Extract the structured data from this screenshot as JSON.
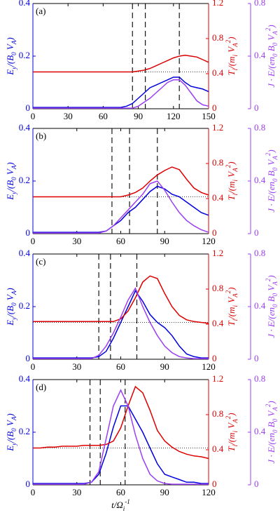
{
  "chart_data": [
    {
      "type": "line",
      "panel_label": "(a)",
      "xlim": [
        0,
        150
      ],
      "xticks": [
        0,
        30,
        60,
        90,
        120,
        150
      ],
      "ylim": [
        0,
        0.4
      ],
      "yticks": [
        0,
        0.2,
        0.4
      ],
      "y2lim": [
        0,
        1.2
      ],
      "y2ticks": [
        0,
        0.4,
        0.8,
        1.2
      ],
      "y3lim": [
        0,
        0.8
      ],
      "y3ticks": [
        0,
        0.4,
        0.8
      ],
      "ylabel": "E_{y}/(B_{0} V_{A})",
      "y2label": "T_{i}/(m_{i} V_{A}^{2})",
      "y3label": "J · E/(en_{0} B_{0} V_{A}^{2})",
      "vlines": [
        85,
        96,
        125
      ],
      "hline": 0.14,
      "x": [
        0,
        5,
        10,
        15,
        20,
        25,
        30,
        35,
        40,
        45,
        50,
        55,
        60,
        65,
        70,
        75,
        80,
        85,
        90,
        95,
        100,
        105,
        110,
        115,
        120,
        125,
        130,
        135,
        140,
        145,
        150
      ],
      "series": [
        {
          "color": "#0000dd",
          "axis": "y",
          "values": [
            0.005,
            0.005,
            0.005,
            0.005,
            0.005,
            0.005,
            0.005,
            0.005,
            0.005,
            0.005,
            0.005,
            0.005,
            0.005,
            0.005,
            0.005,
            0.005,
            0.01,
            0.02,
            0.04,
            0.06,
            0.08,
            0.09,
            0.1,
            0.11,
            0.12,
            0.12,
            0.1,
            0.085,
            0.08,
            0.075,
            0.065
          ]
        },
        {
          "color": "#dd0000",
          "axis": "y2",
          "values": [
            0.42,
            0.42,
            0.42,
            0.42,
            0.42,
            0.42,
            0.42,
            0.42,
            0.42,
            0.42,
            0.42,
            0.42,
            0.42,
            0.42,
            0.42,
            0.42,
            0.42,
            0.42,
            0.43,
            0.44,
            0.46,
            0.49,
            0.52,
            0.55,
            0.58,
            0.6,
            0.61,
            0.6,
            0.59,
            0.56,
            0.53
          ]
        },
        {
          "color": "#9b3ff0",
          "axis": "y3",
          "values": [
            0.005,
            0.005,
            0.005,
            0.005,
            0.005,
            0.005,
            0.005,
            0.005,
            0.005,
            0.005,
            0.005,
            0.005,
            0.005,
            0.005,
            0.005,
            0.005,
            0.005,
            0.005,
            0.02,
            0.05,
            0.08,
            0.12,
            0.16,
            0.2,
            0.22,
            0.22,
            0.18,
            0.12,
            0.06,
            0.03,
            0.02
          ]
        }
      ]
    },
    {
      "type": "line",
      "panel_label": "(b)",
      "xlim": [
        0,
        120
      ],
      "xticks": [
        0,
        30,
        60,
        90,
        120
      ],
      "ylim": [
        0,
        0.4
      ],
      "yticks": [
        0,
        0.2,
        0.4
      ],
      "y2lim": [
        0,
        1.2
      ],
      "y2ticks": [
        0,
        0.4,
        0.8,
        1.2
      ],
      "y3lim": [
        0,
        0.8
      ],
      "y3ticks": [
        0,
        0.4,
        0.8
      ],
      "ylabel": "E_{y}/(B_{0} V_{A})",
      "y2label": "T_{i}/(m_{i} V_{A}^{2})",
      "y3label": "J · E/(en_{0} B_{0} V_{A}^{2})",
      "vlines": [
        54,
        66,
        85
      ],
      "hline": 0.14,
      "x": [
        0,
        5,
        10,
        15,
        20,
        25,
        30,
        35,
        40,
        45,
        50,
        55,
        60,
        65,
        70,
        75,
        80,
        85,
        90,
        95,
        100,
        105,
        110,
        115,
        120
      ],
      "series": [
        {
          "color": "#0000dd",
          "axis": "y",
          "values": [
            0.005,
            0.005,
            0.005,
            0.005,
            0.005,
            0.005,
            0.005,
            0.005,
            0.005,
            0.005,
            0.01,
            0.03,
            0.05,
            0.08,
            0.1,
            0.13,
            0.16,
            0.18,
            0.17,
            0.15,
            0.14,
            0.12,
            0.1,
            0.08,
            0.07
          ]
        },
        {
          "color": "#dd0000",
          "axis": "y2",
          "values": [
            0.42,
            0.42,
            0.42,
            0.42,
            0.42,
            0.42,
            0.42,
            0.42,
            0.42,
            0.42,
            0.42,
            0.42,
            0.42,
            0.44,
            0.47,
            0.52,
            0.6,
            0.67,
            0.72,
            0.76,
            0.73,
            0.62,
            0.52,
            0.47,
            0.44
          ]
        },
        {
          "color": "#9b3ff0",
          "axis": "y3",
          "values": [
            0.005,
            0.005,
            0.005,
            0.005,
            0.005,
            0.005,
            0.005,
            0.005,
            0.005,
            0.005,
            0.02,
            0.06,
            0.12,
            0.18,
            0.24,
            0.3,
            0.38,
            0.4,
            0.33,
            0.24,
            0.16,
            0.1,
            0.06,
            0.03,
            0.01
          ]
        }
      ]
    },
    {
      "type": "line",
      "panel_label": "(c)",
      "xlim": [
        0,
        120
      ],
      "xticks": [
        0,
        30,
        60,
        90,
        120
      ],
      "ylim": [
        0,
        0.4
      ],
      "yticks": [
        0,
        0.2,
        0.4
      ],
      "y2lim": [
        0,
        1.2
      ],
      "y2ticks": [
        0,
        0.4,
        0.8,
        1.2
      ],
      "y3lim": [
        0,
        0.8
      ],
      "y3ticks": [
        0,
        0.4,
        0.8
      ],
      "ylabel": "E_{y}/(B_{0} V_{A})",
      "y2label": "T_{i}/(m_{i} V_{A}^{2})",
      "y3label": "J · E/(en_{0} B_{0} V_{A}^{2})",
      "vlines": [
        45,
        53,
        71
      ],
      "hline": 0.14,
      "x": [
        0,
        5,
        10,
        15,
        20,
        25,
        30,
        35,
        40,
        45,
        50,
        55,
        60,
        65,
        70,
        75,
        80,
        85,
        90,
        95,
        100,
        105,
        110,
        115,
        120
      ],
      "series": [
        {
          "color": "#0000dd",
          "axis": "y",
          "values": [
            0.005,
            0.005,
            0.005,
            0.005,
            0.005,
            0.005,
            0.005,
            0.005,
            0.005,
            0.01,
            0.03,
            0.08,
            0.14,
            0.2,
            0.26,
            0.22,
            0.17,
            0.14,
            0.12,
            0.09,
            0.05,
            0.02,
            0.01,
            0.005,
            0.005
          ]
        },
        {
          "color": "#dd0000",
          "axis": "y2",
          "values": [
            0.43,
            0.43,
            0.43,
            0.43,
            0.43,
            0.43,
            0.43,
            0.43,
            0.43,
            0.43,
            0.43,
            0.43,
            0.46,
            0.55,
            0.7,
            0.88,
            0.95,
            0.92,
            0.75,
            0.6,
            0.5,
            0.45,
            0.43,
            0.42,
            0.41
          ]
        },
        {
          "color": "#9b3ff0",
          "axis": "y3",
          "values": [
            0.005,
            0.005,
            0.005,
            0.005,
            0.005,
            0.005,
            0.005,
            0.005,
            0.005,
            0.03,
            0.1,
            0.2,
            0.32,
            0.45,
            0.54,
            0.4,
            0.28,
            0.18,
            0.1,
            0.05,
            0.02,
            0.01,
            0.005,
            0.005,
            0.005
          ]
        }
      ]
    },
    {
      "type": "line",
      "panel_label": "(d)",
      "xlim": [
        0,
        120
      ],
      "xticks": [
        0,
        30,
        60,
        90,
        120
      ],
      "ylim": [
        0,
        0.4
      ],
      "yticks": [
        0,
        0.2,
        0.4
      ],
      "y2lim": [
        0,
        1.2
      ],
      "y2ticks": [
        0,
        0.4,
        0.8,
        1.2
      ],
      "y3lim": [
        0,
        0.8
      ],
      "y3ticks": [
        0,
        0.4,
        0.8
      ],
      "ylabel": "E_{y}/(B_{0} V_{A})",
      "y2label": "T_{i}/(m_{i} V_{A}^{2})",
      "y3label": "J · E/(en_{0} B_{0} V_{A}^{2})",
      "xlabel": "t/Ω_{i}^{-1}",
      "vlines": [
        39,
        46,
        63
      ],
      "hline": 0.14,
      "x": [
        0,
        5,
        10,
        15,
        20,
        25,
        30,
        35,
        40,
        45,
        50,
        55,
        60,
        65,
        70,
        75,
        80,
        85,
        90,
        95,
        100,
        105,
        110,
        115,
        120
      ],
      "series": [
        {
          "color": "#0000dd",
          "axis": "y",
          "values": [
            0.005,
            0.005,
            0.005,
            0.005,
            0.005,
            0.005,
            0.005,
            0.005,
            0.01,
            0.04,
            0.12,
            0.22,
            0.3,
            0.3,
            0.25,
            0.2,
            0.14,
            0.08,
            0.04,
            0.03,
            0.02,
            0.01,
            0.01,
            0.005,
            0.005
          ]
        },
        {
          "color": "#dd0000",
          "axis": "y2",
          "values": [
            0.42,
            0.42,
            0.43,
            0.43,
            0.44,
            0.44,
            0.44,
            0.45,
            0.45,
            0.45,
            0.46,
            0.5,
            0.65,
            0.9,
            1.12,
            1.05,
            0.85,
            0.62,
            0.5,
            0.43,
            0.38,
            0.35,
            0.33,
            0.32,
            0.3
          ]
        },
        {
          "color": "#9b3ff0",
          "axis": "y3",
          "values": [
            0.005,
            0.005,
            0.005,
            0.005,
            0.005,
            0.005,
            0.005,
            0.005,
            0.02,
            0.1,
            0.35,
            0.6,
            0.72,
            0.6,
            0.38,
            0.2,
            0.08,
            0.03,
            0.01,
            0.005,
            0.005,
            0.005,
            0.005,
            0.005,
            0.005
          ]
        }
      ]
    }
  ]
}
